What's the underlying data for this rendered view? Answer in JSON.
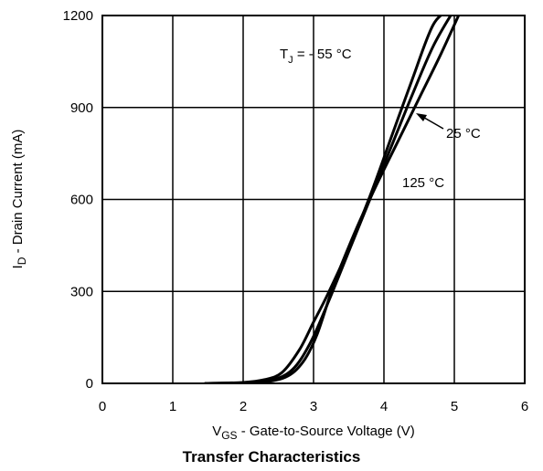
{
  "chart_data": {
    "type": "line",
    "caption": "Transfer Characteristics",
    "xlabel": {
      "main": "V",
      "sub": "GS",
      "rest": " - Gate-to-Source Voltage (V)"
    },
    "ylabel": {
      "main": "I",
      "sub": "D",
      "rest": " - Drain Current (mA)"
    },
    "xlim": [
      0,
      6
    ],
    "ylim": [
      0,
      1200
    ],
    "xticks": [
      "0",
      "1",
      "2",
      "3",
      "4",
      "5",
      "6"
    ],
    "yticks": [
      "0",
      "300",
      "600",
      "900",
      "1200"
    ],
    "grid": true,
    "series": [
      {
        "name": "-55 °C",
        "x": [
          1.45,
          2.0,
          2.3,
          2.55,
          2.8,
          3.0,
          3.2,
          3.5,
          3.8,
          4.1,
          4.4,
          4.7,
          4.95
        ],
        "y": [
          0,
          3,
          12,
          35,
          110,
          200,
          290,
          440,
          610,
          800,
          990,
          1170,
          1220
        ]
      },
      {
        "name": "25 °C",
        "x": [
          1.5,
          2.0,
          2.4,
          2.7,
          2.95,
          3.2,
          3.5,
          3.8,
          4.1,
          4.4,
          4.7,
          5.0
        ],
        "y": [
          0,
          2,
          10,
          45,
          130,
          260,
          430,
          600,
          770,
          940,
          1100,
          1220
        ]
      },
      {
        "name": "125 °C",
        "x": [
          1.6,
          2.2,
          2.6,
          2.85,
          3.05,
          3.3,
          3.6,
          3.9,
          4.2,
          4.5,
          4.8,
          5.1
        ],
        "y": [
          0,
          3,
          20,
          70,
          160,
          330,
          500,
          650,
          790,
          930,
          1070,
          1220
        ]
      }
    ],
    "annotations": {
      "tj_prefix": "T",
      "tj_sub": "J",
      "tj_value": " = - 55 °C",
      "label_25": "25 °C",
      "label_125": "125 °C"
    }
  }
}
